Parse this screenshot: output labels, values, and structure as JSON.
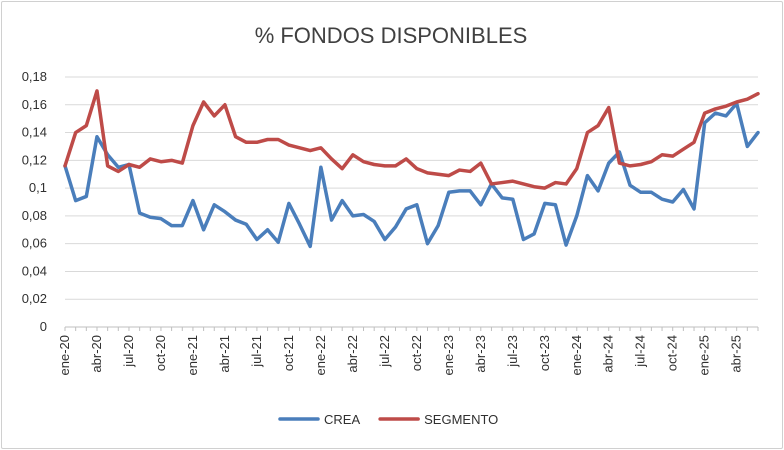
{
  "chart_data": {
    "type": "line",
    "title": "% FONDOS DISPONIBLES",
    "xlabel": "",
    "ylabel": "",
    "ylim": [
      0,
      0.18
    ],
    "y_ticks": [
      "0",
      "0,02",
      "0,04",
      "0,06",
      "0,08",
      "0,1",
      "0,12",
      "0,14",
      "0,16",
      "0,18"
    ],
    "y_tick_values": [
      0,
      0.02,
      0.04,
      0.06,
      0.08,
      0.1,
      0.12,
      0.14,
      0.16,
      0.18
    ],
    "x": [
      "ene-20",
      "feb-20",
      "mar-20",
      "abr-20",
      "may-20",
      "jun-20",
      "jul-20",
      "ago-20",
      "sep-20",
      "oct-20",
      "nov-20",
      "dic-20",
      "ene-21",
      "feb-21",
      "mar-21",
      "abr-21",
      "may-21",
      "jun-21",
      "jul-21",
      "ago-21",
      "sep-21",
      "oct-21",
      "nov-21",
      "dic-21",
      "ene-22",
      "feb-22",
      "mar-22",
      "abr-22",
      "may-22",
      "jun-22",
      "jul-22",
      "ago-22",
      "sep-22",
      "oct-22",
      "nov-22",
      "dic-22",
      "ene-23",
      "feb-23",
      "mar-23",
      "abr-23",
      "may-23",
      "jun-23",
      "jul-23",
      "ago-23",
      "sep-23",
      "oct-23",
      "nov-23",
      "dic-23",
      "ene-24",
      "feb-24",
      "mar-24",
      "abr-24",
      "may-24",
      "jun-24",
      "jul-24",
      "ago-24",
      "sep-24",
      "oct-24",
      "nov-24",
      "dic-24",
      "ene-25",
      "feb-25",
      "mar-25",
      "abr-25",
      "may-25",
      "jun-25"
    ],
    "x_tick_labels": [
      "ene-20",
      "abr-20",
      "jul-20",
      "oct-20",
      "ene-21",
      "abr-21",
      "jul-21",
      "oct-21",
      "ene-22",
      "abr-22",
      "jul-22",
      "oct-22",
      "ene-23",
      "abr-23",
      "jul-23",
      "oct-23",
      "ene-24",
      "abr-24",
      "jul-24",
      "oct-24",
      "ene-25",
      "abr-25"
    ],
    "grid": "horizontal",
    "legend_position": "bottom",
    "series": [
      {
        "name": "CREA",
        "color": "#4a7ebb",
        "values": [
          0.116,
          0.091,
          0.094,
          0.137,
          0.124,
          0.115,
          0.117,
          0.082,
          0.079,
          0.078,
          0.073,
          0.073,
          0.091,
          0.07,
          0.088,
          0.083,
          0.077,
          0.074,
          0.063,
          0.07,
          0.061,
          0.089,
          0.074,
          0.058,
          0.115,
          0.077,
          0.091,
          0.08,
          0.081,
          0.076,
          0.063,
          0.072,
          0.085,
          0.088,
          0.06,
          0.073,
          0.097,
          0.098,
          0.098,
          0.088,
          0.103,
          0.093,
          0.092,
          0.063,
          0.067,
          0.089,
          0.088,
          0.059,
          0.08,
          0.109,
          0.098,
          0.118,
          0.126,
          0.102,
          0.097,
          0.097,
          0.092,
          0.09,
          0.099,
          0.085,
          0.147,
          0.154,
          0.152,
          0.161,
          0.13,
          0.14
        ]
      },
      {
        "name": "SEGMENTO",
        "color": "#be4b48",
        "values": [
          0.116,
          0.14,
          0.145,
          0.17,
          0.116,
          0.112,
          0.117,
          0.115,
          0.121,
          0.119,
          0.12,
          0.118,
          0.145,
          0.162,
          0.152,
          0.16,
          0.137,
          0.133,
          0.133,
          0.135,
          0.135,
          0.131,
          0.129,
          0.127,
          0.129,
          0.121,
          0.114,
          0.124,
          0.119,
          0.117,
          0.116,
          0.116,
          0.121,
          0.114,
          0.111,
          0.11,
          0.109,
          0.113,
          0.112,
          0.118,
          0.103,
          0.104,
          0.105,
          0.103,
          0.101,
          0.1,
          0.104,
          0.103,
          0.114,
          0.14,
          0.145,
          0.158,
          0.118,
          0.116,
          0.117,
          0.119,
          0.124,
          0.123,
          0.128,
          0.133,
          0.154,
          0.157,
          0.159,
          0.162,
          0.164,
          0.168
        ]
      }
    ]
  }
}
